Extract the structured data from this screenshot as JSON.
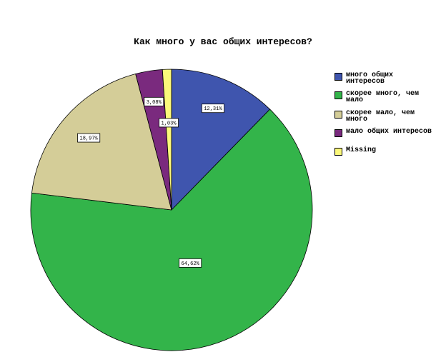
{
  "chart_data": {
    "type": "pie",
    "title": "Как много у вас общих интересов?",
    "categories": [
      "много общих интересов",
      "скорее много, чем мало",
      "скорее мало, чем много",
      "мало общих интересов",
      "Missing"
    ],
    "values": [
      12.31,
      64.62,
      18.97,
      3.08,
      1.03
    ],
    "value_labels": [
      "12,31%",
      "64,62%",
      "18,97%",
      "3,08%",
      "1,03%"
    ],
    "colors": [
      "#3f55ae",
      "#33b44a",
      "#d4cd98",
      "#7a2a7e",
      "#fbf87a"
    ],
    "legend": "right"
  }
}
